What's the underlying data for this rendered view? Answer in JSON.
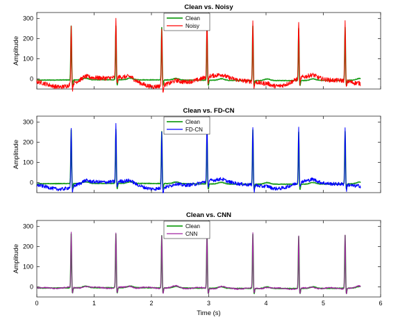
{
  "chart_data": [
    {
      "type": "line",
      "title": "Clean  vs. Noisy",
      "xlabel": "",
      "ylabel": "Amplitude",
      "xlim": [
        0,
        6
      ],
      "ylim": [
        -50,
        330
      ],
      "yticks": [
        0,
        100,
        200,
        300
      ],
      "xticks": [],
      "grid": false,
      "legend_position": "top-center",
      "series": [
        {
          "name": "Clean",
          "color": "#1a9e1a",
          "noise": 0,
          "spike_scale": 1.0
        },
        {
          "name": "Noisy",
          "color": "#ff0000",
          "noise": 1,
          "spike_scale": 1.12
        }
      ]
    },
    {
      "type": "line",
      "title": "Clean vs. FD-CN",
      "xlabel": "",
      "ylabel": "Amplitude",
      "xlim": [
        0,
        6
      ],
      "ylim": [
        -50,
        330
      ],
      "yticks": [
        0,
        100,
        200,
        300
      ],
      "xticks": [],
      "grid": false,
      "legend_position": "top-center",
      "series": [
        {
          "name": "Clean",
          "color": "#1a9e1a",
          "noise": 0,
          "spike_scale": 1.0
        },
        {
          "name": "FD-CN",
          "color": "#0000ff",
          "noise": 0.8,
          "spike_scale": 1.08
        }
      ]
    },
    {
      "type": "line",
      "title": "Clean vs. CNN",
      "xlabel": "Time (s)",
      "ylabel": "Amplitude",
      "xlim": [
        0,
        6
      ],
      "ylim": [
        -50,
        330
      ],
      "yticks": [
        0,
        100,
        200,
        300
      ],
      "xticks": [
        0,
        1,
        2,
        3,
        4,
        5,
        6
      ],
      "grid": false,
      "legend_position": "top-center",
      "series": [
        {
          "name": "Clean",
          "color": "#1a9e1a",
          "noise": 0,
          "spike_scale": 1.0
        },
        {
          "name": "CNN",
          "color": "#a020a0",
          "noise": 0.08,
          "spike_scale": 1.02
        }
      ]
    }
  ],
  "signal": {
    "duration_s": 5.65,
    "r_peak_times_s": [
      0.6,
      1.38,
      2.18,
      2.97,
      3.77,
      4.57,
      5.38
    ],
    "r_peak_amplitudes": [
      268,
      268,
      260,
      262,
      270,
      258,
      262
    ]
  }
}
